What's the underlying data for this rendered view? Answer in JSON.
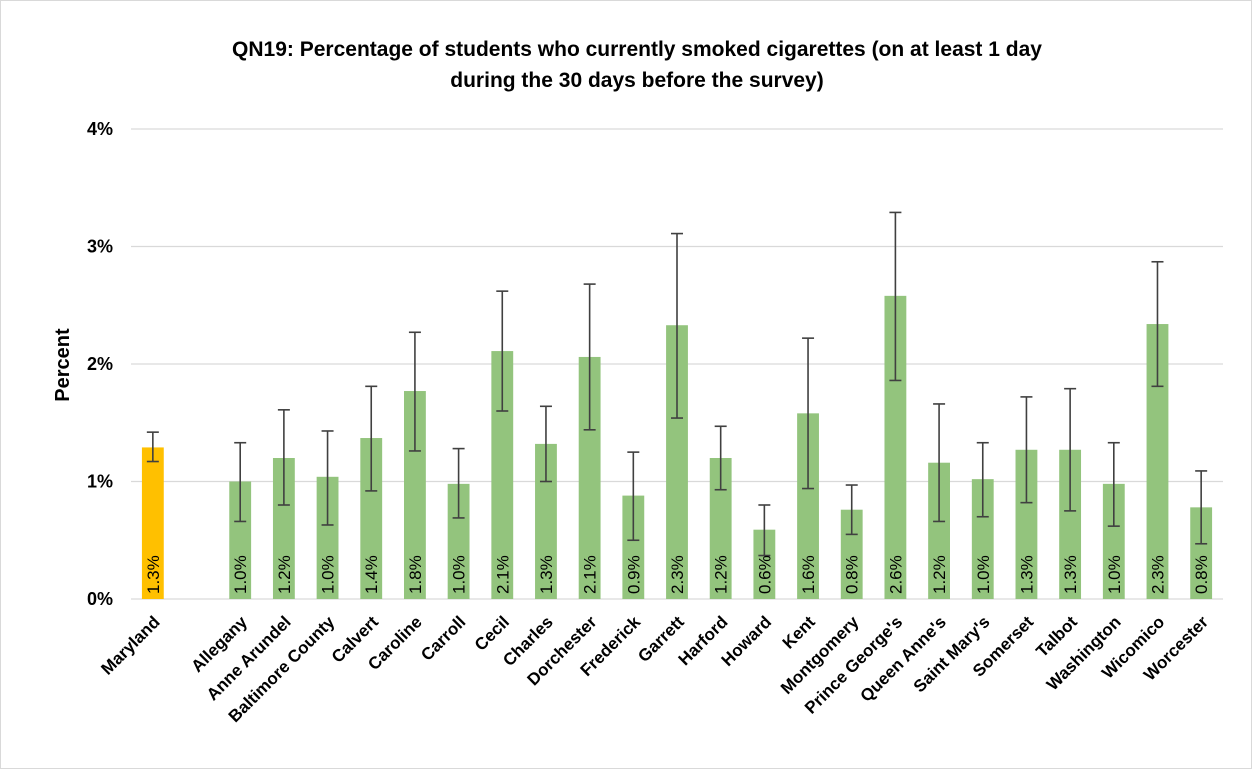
{
  "chart_data": {
    "type": "bar",
    "title_lines": [
      "QN19: Percentage of students who currently smoked cigarettes (on at least 1 day",
      "during the 30 days before the survey)"
    ],
    "ylabel": "Percent",
    "xlabel": "",
    "ylim": [
      0,
      4
    ],
    "yticks": [
      0,
      1,
      2,
      3,
      4
    ],
    "ytick_labels": [
      "0%",
      "1%",
      "2%",
      "3%",
      "4%"
    ],
    "grid": true,
    "legend": "none",
    "colors": {
      "state": "#ffc000",
      "county": "#93c47d",
      "error": "#404040",
      "grid": "#d9d9d9"
    },
    "categories": [
      "Maryland",
      "",
      "Allegany",
      "Anne Arundel",
      "Baltimore County",
      "Calvert",
      "Caroline",
      "Carroll",
      "Cecil",
      "Charles",
      "Dorchester",
      "Frederick",
      "Garrett",
      "Harford",
      "Howard",
      "Kent",
      "Montgomery",
      "Prince George's",
      "Queen Anne's",
      "Saint Mary's",
      "Somerset",
      "Talbot",
      "Washington",
      "Wicomico",
      "Worcester"
    ],
    "values": [
      1.29,
      null,
      1.0,
      1.2,
      1.04,
      1.37,
      1.77,
      0.98,
      2.11,
      1.32,
      2.06,
      0.88,
      2.33,
      1.2,
      0.59,
      1.58,
      0.76,
      2.58,
      1.16,
      1.02,
      1.27,
      1.27,
      0.98,
      2.34,
      0.78
    ],
    "data_labels": [
      "1.3%",
      "",
      "1.0%",
      "1.2%",
      "1.0%",
      "1.4%",
      "1.8%",
      "1.0%",
      "2.1%",
      "1.3%",
      "2.1%",
      "0.9%",
      "2.3%",
      "1.2%",
      "0.6%",
      "1.6%",
      "0.8%",
      "2.6%",
      "1.2%",
      "1.0%",
      "1.3%",
      "1.3%",
      "1.0%",
      "2.3%",
      "0.8%"
    ],
    "ci_lower": [
      1.17,
      null,
      0.66,
      0.8,
      0.63,
      0.92,
      1.26,
      0.69,
      1.6,
      1.0,
      1.44,
      0.5,
      1.54,
      0.93,
      0.37,
      0.94,
      0.55,
      1.86,
      0.66,
      0.7,
      0.82,
      0.75,
      0.62,
      1.81,
      0.47
    ],
    "ci_upper": [
      1.42,
      null,
      1.33,
      1.61,
      1.43,
      1.81,
      2.27,
      1.28,
      2.62,
      1.64,
      2.68,
      1.25,
      3.11,
      1.47,
      0.8,
      2.22,
      0.97,
      3.29,
      1.66,
      1.33,
      1.72,
      1.79,
      1.33,
      2.87,
      1.09
    ],
    "highlight": [
      true,
      false,
      false,
      false,
      false,
      false,
      false,
      false,
      false,
      false,
      false,
      false,
      false,
      false,
      false,
      false,
      false,
      false,
      false,
      false,
      false,
      false,
      false,
      false,
      false
    ]
  }
}
